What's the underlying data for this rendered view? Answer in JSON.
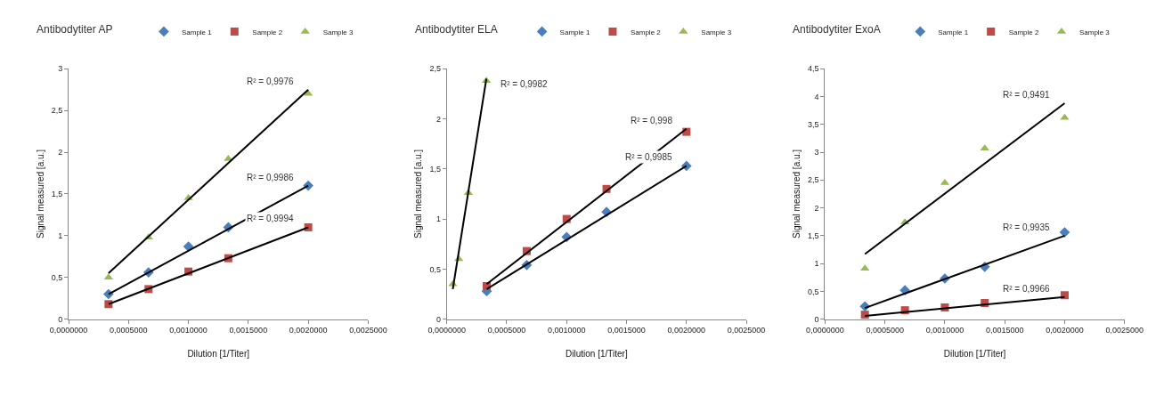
{
  "chart_data": [
    {
      "type": "scatter",
      "title": "Antibodytiter AP",
      "xlabel": "Dilution [1/Titer]",
      "ylabel": "Signal measured [a.u.]",
      "legend": "top",
      "xlim": [
        0,
        0.0025
      ],
      "xticks": [
        {
          "value": 0,
          "label": "0,0000000"
        },
        {
          "value": 0.0005,
          "label": "0,0005000"
        },
        {
          "value": 0.001,
          "label": "0,0010000"
        },
        {
          "value": 0.0015,
          "label": "0,0015000"
        },
        {
          "value": 0.002,
          "label": "0,0020000"
        },
        {
          "value": 0.0025,
          "label": "0,0025000"
        }
      ],
      "ylim": [
        0,
        3
      ],
      "yticks": [
        0,
        {
          "value": 0.5,
          "label": "0,5"
        },
        1,
        {
          "value": 1.5,
          "label": "1,5"
        },
        2,
        {
          "value": 2.5,
          "label": "2,5"
        },
        3
      ],
      "x": [
        0.000333,
        0.000667,
        0.001,
        0.001333,
        0.002
      ],
      "series": [
        {
          "name": "Sample 1",
          "color": "#4a7ebb",
          "marker": "diamond",
          "values": [
            0.3,
            0.56,
            0.87,
            1.1,
            1.6
          ]
        },
        {
          "name": "Sample 2",
          "color": "#be4b48",
          "marker": "square",
          "values": [
            0.18,
            0.36,
            0.57,
            0.73,
            1.1
          ]
        },
        {
          "name": "Sample 3",
          "color": "#98b954",
          "marker": "triangle",
          "values": [
            0.5,
            0.98,
            1.45,
            1.92,
            2.7
          ]
        },
        {
          "type": "line",
          "color": "#000000",
          "marker": "none",
          "x": [
            0.000333,
            0.002
          ],
          "values": [
            0.55,
            2.75
          ]
        },
        {
          "type": "line",
          "color": "#000000",
          "marker": "none",
          "x": [
            0.000333,
            0.002
          ],
          "values": [
            0.3,
            1.6
          ]
        },
        {
          "type": "line",
          "color": "#000000",
          "marker": "none",
          "x": [
            0.000333,
            0.002
          ],
          "values": [
            0.18,
            1.1
          ]
        }
      ],
      "annotations": [
        "R² = 0,9976",
        "R² = 0,9986",
        "R² = 0,9994"
      ]
    },
    {
      "type": "scatter",
      "title": "Antibodytiter ELA",
      "xlabel": "Dilution [1/Titer]",
      "ylabel": "Signal measured [a.u.]",
      "legend": "top",
      "xlim": [
        0,
        0.0025
      ],
      "xticks": [
        {
          "value": 0,
          "label": "0,0000000"
        },
        {
          "value": 0.0005,
          "label": "0,0005000"
        },
        {
          "value": 0.001,
          "label": "0,0010000"
        },
        {
          "value": 0.0015,
          "label": "0,0015000"
        },
        {
          "value": 0.002,
          "label": "0,0020000"
        },
        {
          "value": 0.0025,
          "label": "0,0025000"
        }
      ],
      "ylim": [
        0,
        2.5
      ],
      "yticks": [
        0,
        {
          "value": 0.5,
          "label": "0,5"
        },
        1,
        {
          "value": 1.5,
          "label": "1,5"
        },
        2,
        {
          "value": 2.5,
          "label": "2,5"
        }
      ],
      "x": [
        0.000333,
        0.000667,
        0.001,
        0.001333,
        0.002
      ],
      "series": [
        {
          "name": "Sample 1",
          "color": "#4a7ebb",
          "marker": "diamond",
          "values": [
            0.28,
            0.54,
            0.82,
            1.07,
            1.53
          ]
        },
        {
          "name": "Sample 2",
          "color": "#be4b48",
          "marker": "square",
          "values": [
            0.33,
            0.68,
            1.0,
            1.3,
            1.87
          ]
        },
        {
          "name": "Sample 3",
          "color": "#98b954",
          "marker": "triangle",
          "x": [
            5e-05,
            0.0001,
            0.00018,
            0.00033
          ],
          "values": [
            0.35,
            0.6,
            1.26,
            2.38
          ]
        },
        {
          "type": "line",
          "color": "#000000",
          "marker": "none",
          "x": [
            5e-05,
            0.00033
          ],
          "values": [
            0.3,
            2.4
          ]
        },
        {
          "type": "line",
          "color": "#000000",
          "marker": "none",
          "x": [
            0.000333,
            0.002
          ],
          "values": [
            0.35,
            1.9
          ]
        },
        {
          "type": "line",
          "color": "#000000",
          "marker": "none",
          "x": [
            0.000333,
            0.002
          ],
          "values": [
            0.3,
            1.53
          ]
        }
      ],
      "annotations": [
        "R² = 0,9982",
        "R² = 0,998",
        "R² = 0,9985"
      ]
    },
    {
      "type": "scatter",
      "title": "Antibodytiter ExoA",
      "xlabel": "Dilution [1/Titer]",
      "ylabel": "Signal measured [a.u.]",
      "legend": "top",
      "xlim": [
        0,
        0.0025
      ],
      "xticks": [
        {
          "value": 0,
          "label": "0,0000000"
        },
        {
          "value": 0.0005,
          "label": "0,0005000"
        },
        {
          "value": 0.001,
          "label": "0,0010000"
        },
        {
          "value": 0.0015,
          "label": "0,0015000"
        },
        {
          "value": 0.002,
          "label": "0,0020000"
        },
        {
          "value": 0.0025,
          "label": "0,0025000"
        }
      ],
      "ylim": [
        0,
        4.5
      ],
      "yticks": [
        0,
        {
          "value": 0.5,
          "label": "0,5"
        },
        1,
        {
          "value": 1.5,
          "label": "1,5"
        },
        2,
        {
          "value": 2.5,
          "label": "2,5"
        },
        3,
        {
          "value": 3.5,
          "label": "3,5"
        },
        4,
        {
          "value": 4.5,
          "label": "4,5"
        }
      ],
      "x": [
        0.000333,
        0.000667,
        0.001,
        0.001333,
        0.002
      ],
      "series": [
        {
          "name": "Sample 1",
          "color": "#4a7ebb",
          "marker": "diamond",
          "values": [
            0.23,
            0.52,
            0.73,
            0.94,
            1.56
          ]
        },
        {
          "name": "Sample 2",
          "color": "#be4b48",
          "marker": "square",
          "values": [
            0.08,
            0.16,
            0.21,
            0.29,
            0.43
          ]
        },
        {
          "name": "Sample 3",
          "color": "#98b954",
          "marker": "triangle",
          "values": [
            0.91,
            1.74,
            2.45,
            3.07,
            3.62
          ]
        },
        {
          "type": "line",
          "color": "#000000",
          "marker": "none",
          "x": [
            0.000333,
            0.002
          ],
          "values": [
            1.17,
            3.88
          ]
        },
        {
          "type": "line",
          "color": "#000000",
          "marker": "none",
          "x": [
            0.000333,
            0.002
          ],
          "values": [
            0.2,
            1.5
          ]
        },
        {
          "type": "line",
          "color": "#000000",
          "marker": "none",
          "x": [
            0.000333,
            0.002
          ],
          "values": [
            0.06,
            0.4
          ]
        }
      ],
      "annotations": [
        "R² = 0,9491",
        "R² = 0,9935",
        "R² = 0,9966"
      ]
    }
  ]
}
